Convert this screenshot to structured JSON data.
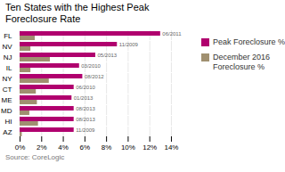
{
  "chart_data": {
    "type": "bar",
    "orientation": "horizontal",
    "title": "Ten States with the Highest Peak\nForeclosure Rate",
    "categories": [
      "FL",
      "NV",
      "NJ",
      "IL",
      "NY",
      "CT",
      "ME",
      "MD",
      "HI",
      "AZ"
    ],
    "series": [
      {
        "name": "Peak Foreclosure %",
        "color": "#b0006e",
        "values": [
          13.0,
          9.0,
          7.0,
          5.5,
          5.8,
          5.0,
          4.8,
          5.0,
          5.0,
          5.0
        ],
        "labels": [
          "06/2011",
          "11/2009",
          "05/2013",
          "03/2010",
          "08/2012",
          "06/2010",
          "01/2013",
          "08/2013",
          "08/2013",
          "11/2009"
        ]
      },
      {
        "name": "December 2016\nForeclosure %",
        "color": "#a09070",
        "values": [
          1.4,
          1.0,
          2.8,
          1.0,
          2.7,
          1.5,
          1.6,
          0.9,
          1.7,
          0.2
        ]
      }
    ],
    "xlim": [
      0,
      14
    ],
    "xticks": [
      {
        "value": 0,
        "label": "0%"
      },
      {
        "value": 2,
        "label": "2%"
      },
      {
        "value": 4,
        "label": "4%"
      },
      {
        "value": 6,
        "label": "6%"
      },
      {
        "value": 8,
        "label": "8%"
      },
      {
        "value": 10,
        "label": "10%"
      },
      {
        "value": 12,
        "label": "12%"
      },
      {
        "value": 14,
        "label": "14%"
      }
    ],
    "grid": true,
    "legend": "right",
    "caption": "Source: CoreLogic"
  }
}
